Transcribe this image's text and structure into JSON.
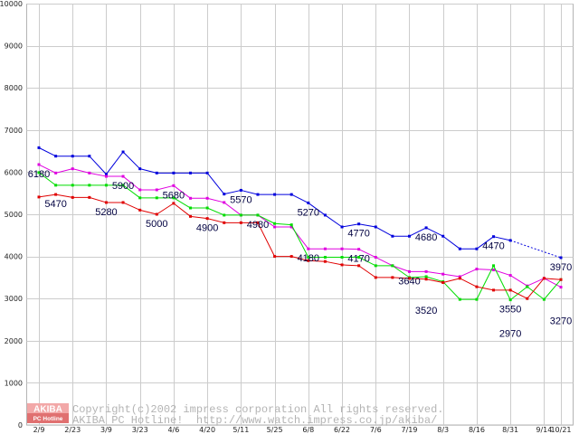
{
  "chart_data": {
    "type": "line",
    "title": "",
    "xlabel": "",
    "ylabel": "",
    "ylim": [
      0,
      10000
    ],
    "yticks": [
      0,
      1000,
      2000,
      3000,
      4000,
      5000,
      6000,
      7000,
      8000,
      9000,
      10000
    ],
    "grid": true,
    "legend": "none",
    "categories": [
      "2/9",
      "",
      "2/23",
      "",
      "3/9",
      "",
      "3/23",
      "",
      "4/6",
      "",
      "4/20",
      "",
      "5/11",
      "",
      "5/25",
      "",
      "6/8",
      "",
      "6/22",
      "",
      "7/6",
      "",
      "7/19",
      "",
      "8/3",
      "",
      "8/16",
      "",
      "8/31",
      "",
      "9/14",
      "10/21"
    ],
    "series": [
      {
        "color": "#0000dd",
        "gap_style": "dotted",
        "values": [
          6580,
          6380,
          6380,
          6380,
          5950,
          6480,
          6080,
          5980,
          5980,
          5980,
          5980,
          5480,
          5570,
          5470,
          5470,
          5470,
          5270,
          4980,
          4700,
          4770,
          4700,
          4480,
          4480,
          4680,
          4480,
          4180,
          4180,
          4470,
          4380,
          null,
          null,
          3970
        ]
      },
      {
        "color": "#e000e0",
        "values": [
          6180,
          5980,
          6080,
          5980,
          5900,
          5900,
          5580,
          5580,
          5680,
          5380,
          5380,
          5280,
          4980,
          4980,
          4700,
          4700,
          4180,
          4180,
          4180,
          4170,
          3980,
          3780,
          3640,
          3640,
          3580,
          3520,
          3700,
          3680,
          3550,
          3300,
          3480,
          3270
        ]
      },
      {
        "color": "#00dd00",
        "values": [
          5990,
          5690,
          5690,
          5690,
          5690,
          5690,
          5390,
          5390,
          5390,
          5150,
          5150,
          4980,
          4980,
          4980,
          4780,
          4750,
          3980,
          3980,
          3980,
          3980,
          3780,
          3780,
          3500,
          3520,
          3400,
          2980,
          2980,
          3780,
          2970,
          3280,
          2980,
          3450
        ]
      },
      {
        "color": "#e00000",
        "values": [
          5410,
          5470,
          5400,
          5400,
          5280,
          5280,
          5100,
          5000,
          5260,
          4950,
          4900,
          4800,
          4800,
          4800,
          4000,
          4000,
          3900,
          3880,
          3800,
          3780,
          3500,
          3500,
          3480,
          3460,
          3380,
          3480,
          3280,
          3200,
          3200,
          3000,
          3480,
          3450
        ]
      }
    ],
    "annotations": [
      {
        "series": 1,
        "index": 0,
        "text": "6180",
        "placement": "below"
      },
      {
        "series": 3,
        "index": 1,
        "text": "5470",
        "placement": "below"
      },
      {
        "series": 1,
        "index": 5,
        "text": "5900",
        "placement": "below"
      },
      {
        "series": 3,
        "index": 4,
        "text": "5280",
        "placement": "below"
      },
      {
        "series": 1,
        "index": 8,
        "text": "5680",
        "placement": "below"
      },
      {
        "series": 3,
        "index": 7,
        "text": "5000",
        "placement": "below"
      },
      {
        "series": 3,
        "index": 10,
        "text": "4900",
        "placement": "below"
      },
      {
        "series": 0,
        "index": 12,
        "text": "5570",
        "placement": "below"
      },
      {
        "series": 1,
        "index": 13,
        "text": "4980",
        "placement": "below"
      },
      {
        "series": 0,
        "index": 16,
        "text": "5270",
        "placement": "below"
      },
      {
        "series": 1,
        "index": 16,
        "text": "4180",
        "placement": "below"
      },
      {
        "series": 0,
        "index": 19,
        "text": "4770",
        "placement": "below"
      },
      {
        "series": 1,
        "index": 19,
        "text": "4170",
        "placement": "below"
      },
      {
        "series": 0,
        "index": 23,
        "text": "4680",
        "placement": "below"
      },
      {
        "series": 1,
        "index": 22,
        "text": "3640",
        "placement": "below"
      },
      {
        "series": 2,
        "index": 23,
        "text": "3520",
        "placement": "far-below"
      },
      {
        "series": 0,
        "index": 27,
        "text": "4470",
        "placement": "below"
      },
      {
        "series": 1,
        "index": 28,
        "text": "3550",
        "placement": "far-below"
      },
      {
        "series": 2,
        "index": 28,
        "text": "2970",
        "placement": "far-below"
      },
      {
        "series": 0,
        "index": 31,
        "text": "3970",
        "placement": "below"
      },
      {
        "series": 1,
        "index": 31,
        "text": "3270",
        "placement": "far-below"
      }
    ]
  },
  "watermark": {
    "logo_top": "AKIBA",
    "logo_bottom": "PC Hotline",
    "line1": "Copyright(c)2002 impress corporation All rights reserved.",
    "line2": "AKIBA PC Hotline!  http://www.watch.impress.co.jp/akiba/"
  }
}
